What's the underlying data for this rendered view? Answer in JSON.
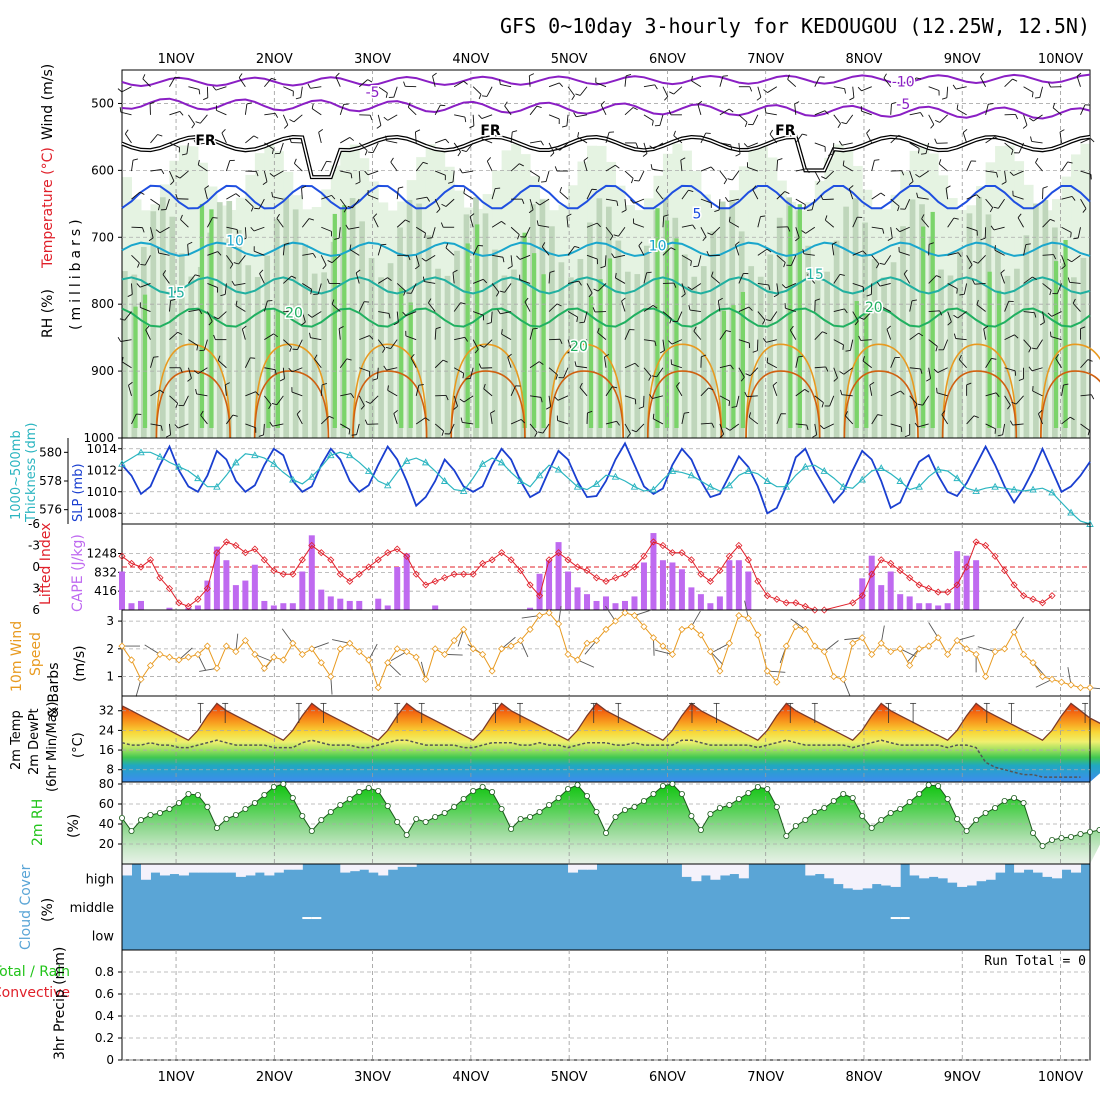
{
  "title": "GFS 0~10day 3-hourly for KEDOUGOU (12.25W, 12.5N)",
  "dates": [
    "1NOV",
    "2NOV",
    "3NOV",
    "4NOV",
    "5NOV",
    "6NOV",
    "7NOV",
    "8NOV",
    "9NOV",
    "10NOV"
  ],
  "colors": {
    "purple": "#8a1fc4",
    "blue": "#1f4fe0",
    "cyan": "#1aa6cc",
    "teal": "#21b0a0",
    "green": "#20b060",
    "orange": "#e0961a",
    "dorange": "#d06010",
    "red": "#e0202a",
    "cape": "#bf6af0",
    "slp": "#1a3fd0",
    "thick": "#2bb5c0",
    "wind": "#e89a20",
    "rhgreen": "#22c41a",
    "cloud": "#5aa5d6"
  },
  "chart_data": [
    {
      "panel": "upper_air",
      "type": "contour",
      "ylabel_parts": [
        "RH (%)",
        "Temperature (°C)",
        "Wind (m/s)"
      ],
      "yunits": "(millibars)",
      "ylim": [
        1000,
        450
      ],
      "yticks": [
        500,
        600,
        700,
        800,
        900,
        1000
      ],
      "contour_labels": [
        {
          "text": "-10",
          "p": 475,
          "day": 7.4
        },
        {
          "text": "-5",
          "p": 490,
          "day": 2.0
        },
        {
          "text": "-5",
          "p": 508,
          "day": 7.4
        },
        {
          "text": "FR",
          "p": 562,
          "day": 0.3
        },
        {
          "text": "FR",
          "p": 547,
          "day": 3.2
        },
        {
          "text": "FR",
          "p": 547,
          "day": 6.2
        },
        {
          "text": "5",
          "p": 672,
          "day": 5.3
        },
        {
          "text": "10",
          "p": 712,
          "day": 0.6
        },
        {
          "text": "10",
          "p": 720,
          "day": 4.9
        },
        {
          "text": "15",
          "p": 790,
          "day": 0.0
        },
        {
          "text": "15",
          "p": 762,
          "day": 6.5
        },
        {
          "text": "20",
          "p": 820,
          "day": 1.2
        },
        {
          "text": "20",
          "p": 870,
          "day": 4.1
        },
        {
          "text": "20",
          "p": 812,
          "day": 7.1
        }
      ]
    },
    {
      "panel": "slp_thickness",
      "type": "line",
      "ylabel_left": "1000~500mb Thickness (dm)",
      "ylabel_right": "SLP (mb)",
      "ylim_left": [
        575,
        581
      ],
      "yticks_left": [
        576,
        578,
        580
      ],
      "ylim_right": [
        1007,
        1015
      ],
      "yticks_right": [
        1008,
        1010,
        1012,
        1014
      ],
      "series": [
        {
          "name": "SLP",
          "axis": "right",
          "values": [
            1012.5,
            1011.5,
            1009.8,
            1010.5,
            1012.5,
            1014.2,
            1012,
            1010.5,
            1010,
            1011.5,
            1013.8,
            1013,
            1011,
            1010,
            1010.6,
            1012.5,
            1014,
            1013.4,
            1011,
            1010,
            1010.5,
            1012.5,
            1014,
            1013,
            1011,
            1010,
            1010.6,
            1012.5,
            1014.2,
            1013,
            1011,
            1008.7,
            1009.5,
            1011,
            1013,
            1012,
            1010.5,
            1010,
            1010.5,
            1012.5,
            1014,
            1013,
            1011,
            1009.5,
            1010,
            1012,
            1013.8,
            1013,
            1011,
            1009.5,
            1009.6,
            1011,
            1013,
            1014.5,
            1012.5,
            1010.5,
            1009.8,
            1010.3,
            1012.5,
            1014,
            1013,
            1011,
            1009.5,
            1009.8,
            1011.5,
            1013.3,
            1012.3,
            1010.5,
            1008,
            1008.5,
            1010.5,
            1013.2,
            1014,
            1012,
            1010.5,
            1009,
            1010,
            1012,
            1013.8,
            1013,
            1011,
            1008.5,
            1009,
            1011,
            1012.8,
            1013.4,
            1011.5,
            1010,
            1009.6,
            1010.8,
            1012.5,
            1014.2,
            1012.5,
            1010.5,
            1009,
            1010.3,
            1012,
            1014,
            1012,
            1010,
            1010.5,
            1011.5,
            1012.8
          ]
        },
        {
          "name": "Thickness",
          "axis": "left",
          "values": [
            579.2,
            579.6,
            580.0,
            580.0,
            579.7,
            579.3,
            579.0,
            578.7,
            578.2,
            577.6,
            577.6,
            578.4,
            579.3,
            579.9,
            579.8,
            579.6,
            579.2,
            578.6,
            578.1,
            577.8,
            578.3,
            579.0,
            579.8,
            580.0,
            579.8,
            579.3,
            578.7,
            578.0,
            577.7,
            578.6,
            579.4,
            579.6,
            579.3,
            578.7,
            578.0,
            577.4,
            577.3,
            578.2,
            579.2,
            579.6,
            579.3,
            578.6,
            578.0,
            577.6,
            578.4,
            579.1,
            578.8,
            578.2,
            577.6,
            577.4,
            577.8,
            578.4,
            578.3,
            578.0,
            577.6,
            577.3,
            577.4,
            578.1,
            578.7,
            578.6,
            578.4,
            578.0,
            577.6,
            577.3,
            577.7,
            578.4,
            578.7,
            578.5,
            578.0,
            577.6,
            577.6,
            578.4,
            579.0,
            579.1,
            578.7,
            578.2,
            577.6,
            577.5,
            578.1,
            578.7,
            578.9,
            578.5,
            578.0,
            577.4,
            577.6,
            578.3,
            578.8,
            578.7,
            578.2,
            577.5,
            577.3,
            577.5,
            577.6,
            577.5,
            577.4,
            577.3,
            577.4,
            577.5,
            577.2,
            576.5,
            575.8,
            575.2,
            575.0
          ]
        }
      ]
    },
    {
      "panel": "lifted_index_cape",
      "type": "bar+line",
      "ylabel_left": "Lifted Index",
      "ylabel_right": "CAPE (J/kg)",
      "ylim_left": [
        6,
        -6
      ],
      "yticks_left": [
        "-6",
        "-3",
        "0",
        "3",
        "6"
      ],
      "yticks_right": [
        416,
        832,
        1248
      ],
      "cape_bars": [
        850,
        150,
        200,
        0,
        0,
        50,
        0,
        50,
        100,
        650,
        1400,
        1100,
        550,
        650,
        1000,
        200,
        100,
        150,
        150,
        850,
        1650,
        450,
        300,
        250,
        200,
        200,
        0,
        250,
        100,
        950,
        1250,
        0,
        0,
        100,
        0,
        0,
        0,
        0,
        0,
        0,
        0,
        0,
        0,
        50,
        800,
        1100,
        1500,
        850,
        500,
        350,
        200,
        300,
        150,
        200,
        300,
        1050,
        1700,
        1100,
        1050,
        900,
        500,
        350,
        150,
        300,
        1100,
        1100,
        850,
        0,
        0,
        0,
        0,
        0,
        0,
        0,
        0,
        0,
        0,
        0,
        700,
        1200,
        550,
        850,
        350,
        300,
        150,
        150,
        100,
        150,
        1300,
        1200,
        1100,
        0,
        0,
        0,
        0,
        0,
        0,
        0,
        0,
        0,
        0,
        0,
        0
      ],
      "li_values": [
        -1.5,
        -0.5,
        0,
        -1,
        1.5,
        3,
        5,
        5.5,
        4.5,
        3,
        -2,
        -3.5,
        -3,
        -2,
        -2.5,
        -1,
        0.5,
        1,
        1,
        -1,
        -3,
        -2,
        -1,
        1,
        2,
        1,
        0,
        -1,
        -2,
        -2.5,
        -1.5,
        1,
        2.5,
        2,
        1.5,
        1,
        1,
        1,
        -0.5,
        -1,
        -2,
        -1,
        0.5,
        2.5,
        4,
        -1,
        -2,
        -1,
        0,
        0.5,
        1.5,
        2,
        1.5,
        1,
        0,
        -1.5,
        -3.5,
        -3,
        -2,
        -2,
        -1,
        1,
        2,
        0.5,
        -1.5,
        -3,
        -1,
        2,
        4,
        4.5,
        5,
        5,
        5.5,
        6,
        6,
        6.5,
        6.5,
        5,
        4,
        1,
        -1,
        -0.5,
        0.5,
        1.5,
        2.5,
        3,
        3.5,
        3.5,
        2.5,
        0,
        -3.5,
        -3,
        -1.5,
        0.5,
        2.5,
        4,
        4.5,
        5,
        4,
        6.5,
        7,
        7.5,
        8
      ]
    },
    {
      "panel": "wind10m",
      "type": "line",
      "ylabel": "10m Wind Speed & Barbs",
      "yunits": "(m/s)",
      "ylim": [
        0.3,
        3.4
      ],
      "yticks": [
        1,
        2,
        3
      ],
      "values": [
        2.1,
        1.6,
        0.9,
        1.4,
        1.8,
        1.7,
        1.6,
        1.7,
        1.8,
        2.1,
        1.3,
        2.1,
        1.9,
        2.3,
        1.8,
        1.3,
        1.7,
        1.6,
        2.2,
        1.8,
        2.0,
        1.5,
        1.0,
        2.0,
        2.2,
        1.9,
        1.6,
        0.6,
        1.5,
        2.0,
        1.9,
        1.7,
        0.9,
        2.0,
        1.8,
        2.3,
        2.7,
        2.0,
        1.8,
        1.2,
        2.0,
        2.1,
        2.3,
        2.7,
        3.2,
        3.3,
        2.9,
        1.8,
        1.6,
        2.2,
        2.3,
        2.7,
        3.0,
        3.3,
        3.2,
        2.8,
        2.4,
        2.1,
        1.8,
        2.7,
        2.8,
        2.5,
        1.9,
        1.2,
        2.2,
        3.2,
        3.1,
        2.5,
        1.2,
        0.8,
        2.1,
        2.8,
        2.7,
        2.1,
        1.9,
        1.0,
        0.9,
        2.2,
        2.4,
        1.8,
        2.2,
        1.9,
        2.0,
        1.4,
        2.0,
        2.1,
        2.4,
        1.8,
        2.3,
        2.0,
        1.8,
        1.0,
        1.9,
        2.0,
        2.6,
        1.8,
        1.5,
        1.0,
        0.9,
        0.8,
        0.7,
        0.6,
        0.6
      ]
    },
    {
      "panel": "temp2m",
      "type": "area+line",
      "ylabel": "2m Temp 2m DewPt (6hr Min/Max)",
      "yunits": "(°C)",
      "ylim": [
        3,
        38
      ],
      "yticks": [
        8,
        16,
        24,
        32
      ],
      "temp_values": [
        34,
        32,
        30,
        28,
        26,
        24,
        22,
        20,
        24,
        30,
        35,
        32,
        30,
        28,
        26,
        24,
        22,
        20,
        24,
        30,
        35,
        32,
        30,
        28,
        26,
        24,
        22,
        20,
        24,
        30,
        35,
        32,
        30,
        28,
        26,
        24,
        22,
        20,
        24,
        30,
        35,
        32,
        30,
        28,
        26,
        24,
        22,
        20,
        24,
        30,
        35,
        32,
        30,
        28,
        26,
        24,
        22,
        20,
        24,
        30,
        35,
        32,
        30,
        28,
        26,
        24,
        22,
        20,
        24,
        30,
        35,
        32,
        30,
        28,
        26,
        24,
        22,
        20,
        24,
        30,
        35,
        32,
        30,
        28,
        26,
        24,
        22,
        20,
        24,
        30,
        35,
        32,
        30,
        28,
        26,
        24,
        22,
        20,
        24,
        30,
        35,
        32,
        29,
        27,
        25,
        23,
        21,
        20
      ],
      "dewpt_values": [
        19,
        18,
        18,
        19,
        18,
        18,
        17,
        17,
        18,
        19,
        20,
        19,
        18,
        18,
        18,
        18,
        17,
        17,
        17,
        19,
        20,
        19,
        18,
        18,
        18,
        17,
        17,
        18,
        19,
        20,
        20,
        19,
        18,
        18,
        18,
        18,
        17,
        17,
        18,
        19,
        19,
        19,
        18,
        18,
        19,
        18,
        18,
        17,
        18,
        19,
        19,
        19,
        18,
        18,
        19,
        18,
        18,
        18,
        18,
        20,
        20,
        19,
        18,
        18,
        18,
        18,
        18,
        17,
        18,
        19,
        20,
        19,
        18,
        18,
        18,
        18,
        18,
        17,
        18,
        19,
        20,
        19,
        18,
        18,
        18,
        18,
        18,
        17,
        18,
        18,
        17,
        11,
        9,
        8,
        7,
        6,
        6,
        5,
        5,
        5,
        5,
        5
      ]
    },
    {
      "panel": "rh2m",
      "type": "area+line",
      "ylabel": "2m RH",
      "yunits": "(%)",
      "ylim": [
        0,
        82
      ],
      "yticks": [
        20,
        40,
        60,
        80
      ],
      "values": [
        46,
        33,
        44,
        49,
        51,
        55,
        61,
        70,
        69,
        57,
        36,
        45,
        49,
        55,
        61,
        69,
        77,
        80,
        66,
        48,
        33,
        44,
        52,
        59,
        65,
        72,
        76,
        73,
        58,
        42,
        29,
        45,
        42,
        47,
        51,
        57,
        65,
        73,
        77,
        72,
        55,
        35,
        45,
        47,
        52,
        59,
        66,
        75,
        79,
        68,
        52,
        31,
        47,
        54,
        57,
        63,
        70,
        78,
        80,
        70,
        48,
        34,
        50,
        56,
        59,
        65,
        71,
        77,
        75,
        57,
        28,
        38,
        44,
        52,
        56,
        63,
        70,
        66,
        48,
        36,
        44,
        51,
        55,
        62,
        70,
        79,
        78,
        65,
        45,
        33,
        44,
        51,
        56,
        63,
        66,
        61,
        31,
        18,
        24,
        26,
        27,
        30,
        32,
        34,
        37
      ]
    },
    {
      "panel": "cloud_cover",
      "type": "heatmap",
      "ylabel": "Cloud Cover",
      "yunits": "(%)",
      "levels": [
        "high",
        "middle",
        "low"
      ],
      "high_gaps": [
        0.4,
        0,
        0.55,
        0.3,
        0.4,
        0.35,
        0.4,
        0.3,
        0.3,
        0.3,
        0.3,
        0.3,
        0.45,
        0.4,
        0.3,
        0.4,
        0.3,
        0.2,
        0.2,
        0,
        0,
        0,
        0,
        0.3,
        0.25,
        0.2,
        0.3,
        0.4,
        0.2,
        0.1,
        0.1,
        0,
        0,
        0,
        0,
        0,
        0,
        0,
        0,
        0,
        0,
        0,
        0,
        0,
        0,
        0,
        0,
        0.3,
        0.2,
        0.2,
        0,
        0,
        0,
        0,
        0,
        0,
        0,
        0,
        0,
        0.45,
        0.6,
        0.4,
        0.55,
        0.4,
        0.35,
        0.5,
        0,
        0,
        0,
        0,
        0,
        0,
        0.4,
        0.35,
        0.5,
        0.7,
        0.85,
        0.9,
        0.85,
        0.7,
        0.75,
        0.8,
        0,
        0.4,
        0.5,
        0.45,
        0.5,
        0.65,
        0.8,
        0.75,
        0.6,
        0.55,
        0.3,
        0,
        0.3,
        0.2,
        0.3,
        0.45,
        0.5,
        0.2,
        0.3,
        0,
        0
      ],
      "middle_gaps": [
        19,
        20,
        81,
        82
      ]
    },
    {
      "panel": "precip",
      "type": "bar",
      "ylabel": "3hr Precip (mm)",
      "legend": [
        "Total / Rain",
        "Convective"
      ],
      "annotation": "Run Total = 0",
      "ylim": [
        0,
        1
      ],
      "yticks": [
        "0",
        "0.2",
        "0.4",
        "0.6",
        "0.8"
      ],
      "values": []
    }
  ],
  "labels": {
    "upper_rh": "RH (%)",
    "upper_temp": "Temperature (°C)",
    "upper_wind": "Wind (m/s)",
    "upper_units": "(millibars)",
    "slp_left": "1000~500mb",
    "slp_left2": "Thickness (dm)",
    "slp_right": "SLP (mb)",
    "li_left": "Lifted Index",
    "li_right": "CAPE (J/kg)",
    "wind_l1": "10m Wind",
    "wind_l2": "Speed",
    "wind_l3": "& Barbs",
    "wind_units": "(m/s)",
    "temp_l1": "2m Temp",
    "temp_l2": "2m DewPt",
    "temp_l3": "(6hr Min/Max)",
    "temp_units": "(°C)",
    "rh_l1": "2m RH",
    "rh_units": "(%)",
    "cloud_l1": "Cloud Cover",
    "cloud_units": "(%)",
    "precip_l1": "3hr Precip (mm)",
    "precip_total": "Total / Rain",
    "precip_conv": "Convective",
    "run_total": "Run Total = 0"
  }
}
